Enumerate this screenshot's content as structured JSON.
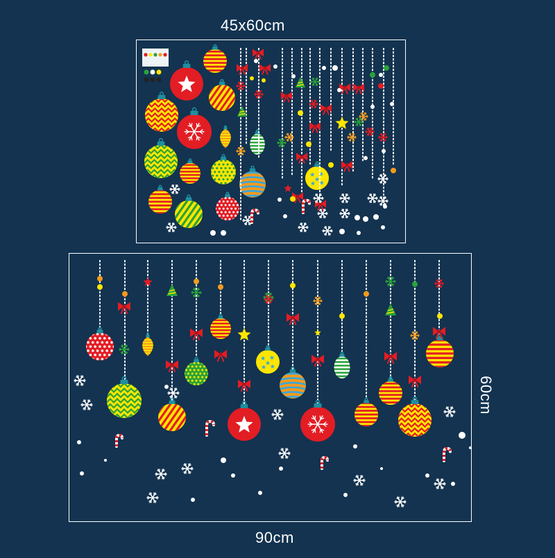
{
  "labels": {
    "top_size": "45x60cm",
    "bottom_width": "90cm",
    "bottom_height": "60cm"
  },
  "colors": {
    "background": "#133350",
    "outline": "#ffffff",
    "red": "#e31d24",
    "yellow": "#ffe600",
    "green": "#2aa33a",
    "orange": "#f39a1e",
    "blue": "#3aa7d8",
    "teal_cap": "#1f8fa0"
  },
  "icons": [
    "ornament-icon",
    "snowflake-icon",
    "star-icon",
    "bow-icon",
    "candy-cane-icon",
    "christmas-tree-icon"
  ]
}
